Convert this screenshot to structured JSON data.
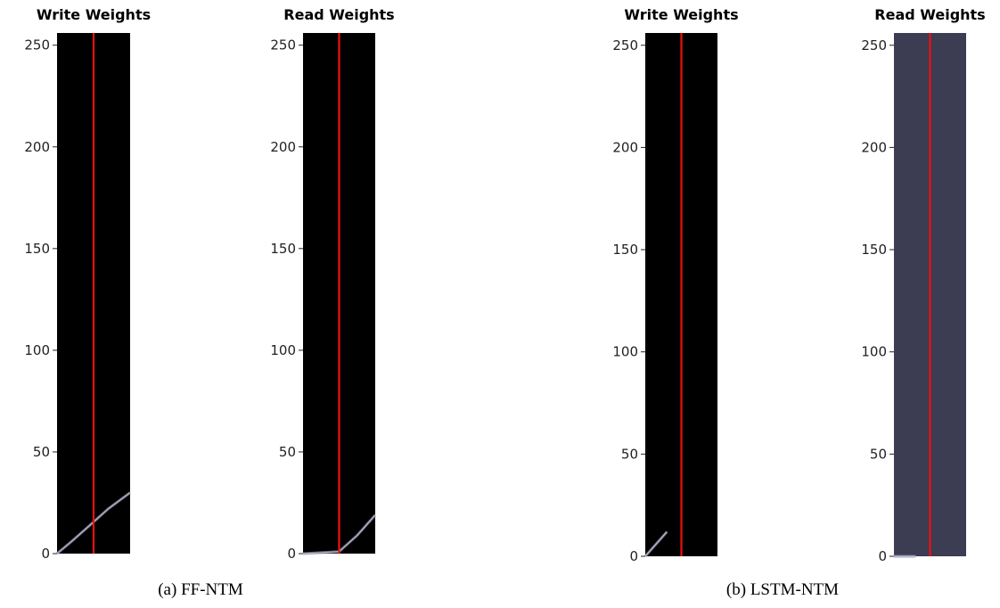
{
  "captions": {
    "a": "(a) FF-NTM",
    "b": "(b) LSTM-NTM"
  },
  "colors": {
    "background_dark": "#000000",
    "background_lstm_read": "#3c3c52",
    "marker": "#ee1111",
    "trace": "#8a8aa8",
    "trace_bright": "#e8e8f0"
  },
  "chart_data": [
    {
      "type": "heatmap",
      "group": "a",
      "title": "Write Weights",
      "ylim": [
        0,
        256
      ],
      "yticks": [
        0,
        50,
        100,
        150,
        200,
        250
      ],
      "background": "#000000",
      "marker_fraction": 0.5,
      "trace": [
        [
          0.0,
          0
        ],
        [
          0.2,
          6
        ],
        [
          0.45,
          14
        ],
        [
          0.7,
          22
        ],
        [
          1.0,
          30
        ]
      ]
    },
    {
      "type": "heatmap",
      "group": "a",
      "title": "Read Weights",
      "ylim": [
        0,
        256
      ],
      "yticks": [
        0,
        50,
        100,
        150,
        200,
        250
      ],
      "background": "#000000",
      "marker_fraction": 0.5,
      "trace": [
        [
          0.0,
          0
        ],
        [
          0.5,
          1
        ],
        [
          0.75,
          9
        ],
        [
          1.0,
          19
        ]
      ]
    },
    {
      "type": "heatmap",
      "group": "b",
      "title": "Write Weights",
      "ylim": [
        0,
        256
      ],
      "yticks": [
        0,
        50,
        100,
        150,
        200,
        250
      ],
      "background": "#000000",
      "marker_fraction": 0.5,
      "trace": [
        [
          0.0,
          0
        ],
        [
          0.3,
          12
        ]
      ]
    },
    {
      "type": "heatmap",
      "group": "b",
      "title": "Read Weights",
      "ylim": [
        0,
        256
      ],
      "yticks": [
        0,
        50,
        100,
        150,
        200,
        250
      ],
      "background": "#3c3c52",
      "marker_fraction": 0.5,
      "trace": [
        [
          0.0,
          0
        ],
        [
          0.3,
          0
        ]
      ]
    }
  ]
}
